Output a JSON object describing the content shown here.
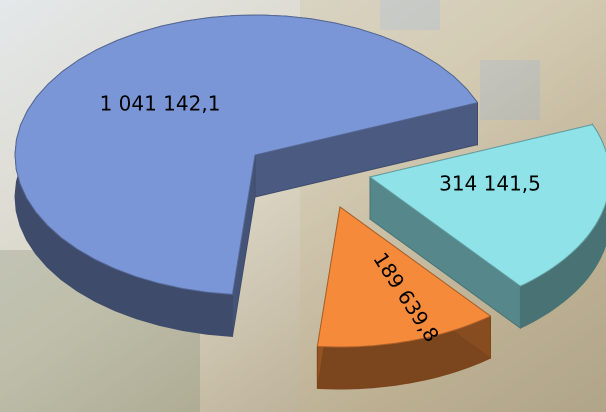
{
  "chart_data": {
    "type": "pie",
    "categories": [
      null,
      null,
      null
    ],
    "values": [
      1041142.1,
      314141.5,
      189639.8
    ],
    "value_labels": [
      "1 041 142,1",
      "314 141,5",
      "189 639,8"
    ],
    "colors": [
      "#7b96d6",
      "#8fe3e8",
      "#f58a3a"
    ]
  }
}
